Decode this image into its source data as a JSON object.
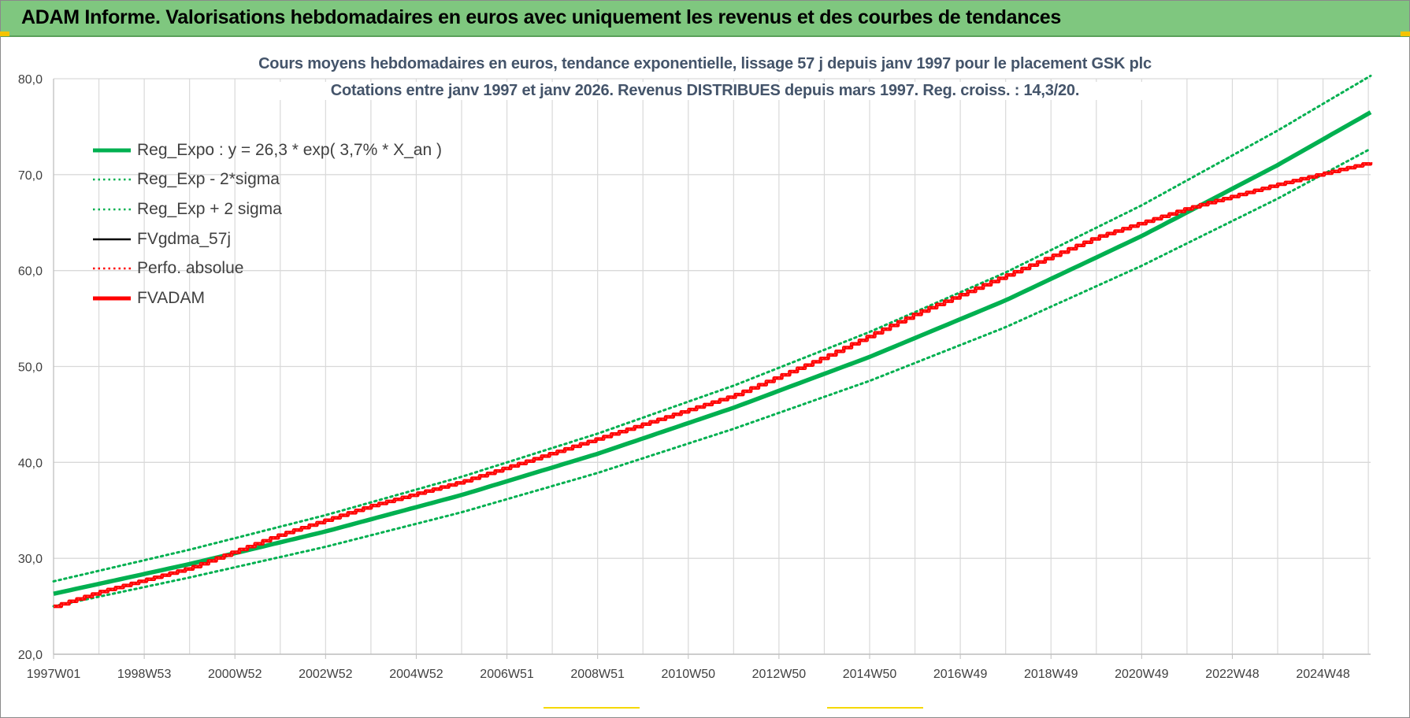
{
  "banner": {
    "title": "ADAM Informe. Valorisations hebdomadaires en euros avec uniquement les revenus et des courbes de tendances"
  },
  "colors": {
    "banner_bg": "#7fc77f",
    "trend_green": "#00b050",
    "red": "#ff0000",
    "black": "#000000",
    "title_color": "#44546a",
    "grid": "#d9d9d9",
    "axis_text": "#404040"
  },
  "chart_data": {
    "type": "line",
    "title_line1": "Cours moyens hebdomadaires en euros, tendance exponentielle, lissage 57 j depuis janv 1997  pour le placement GSK plc",
    "title_line2": "Cotations entre janv 1997 et janv 2026. Revenus DISTRIBUES depuis mars 1997. Reg. croiss. : 14,3/20.",
    "x_tick_labels": [
      "1997W01",
      "1998W53",
      "2000W52",
      "2002W52",
      "2004W52",
      "2006W51",
      "2008W51",
      "2010W50",
      "2012W50",
      "2014W50",
      "2016W49",
      "2018W49",
      "2020W49",
      "2022W48",
      "2024W48"
    ],
    "x_range_years": [
      1997.0,
      2026.05
    ],
    "ylim": [
      20,
      80
    ],
    "y_ticks": [
      "20,0",
      "30,0",
      "40,0",
      "50,0",
      "60,0",
      "70,0",
      "80,0"
    ],
    "grid": true,
    "legend_position": "top-left",
    "series": [
      {
        "name": "Reg_Expo : y = 26,3 * exp( 3,7% *  X_an )",
        "style": "solid-thick",
        "color": "#00b050",
        "x": [
          1997,
          2000,
          2003,
          2006,
          2009,
          2012,
          2015,
          2018,
          2021,
          2024,
          2026.05
        ],
        "y": [
          26.3,
          29.4,
          32.8,
          36.6,
          40.9,
          45.7,
          51.0,
          56.9,
          63.6,
          71.0,
          76.5
        ]
      },
      {
        "name": "Reg_Exp - 2*sigma",
        "style": "dotted",
        "color": "#00b050",
        "x": [
          1997,
          2000,
          2003,
          2006,
          2009,
          2012,
          2015,
          2018,
          2021,
          2024,
          2026.05
        ],
        "y": [
          25.0,
          28.0,
          31.2,
          34.8,
          38.9,
          43.5,
          48.5,
          54.1,
          60.5,
          67.5,
          72.7
        ]
      },
      {
        "name": "Reg_Exp + 2 sigma",
        "style": "dotted",
        "color": "#00b050",
        "x": [
          1997,
          2000,
          2003,
          2006,
          2009,
          2012,
          2015,
          2018,
          2021,
          2024,
          2026.05
        ],
        "y": [
          27.6,
          30.9,
          34.5,
          38.5,
          43.0,
          48.0,
          53.6,
          59.8,
          66.8,
          74.6,
          80.3
        ]
      },
      {
        "name": "FVgdma_57j",
        "style": "solid",
        "color": "#000000",
        "x": [
          1997,
          1998,
          2000,
          2002,
          2004,
          2006,
          2008,
          2010,
          2012,
          2014,
          2016,
          2018,
          2020,
          2022,
          2024,
          2026.05
        ],
        "y": [
          25.0,
          26.5,
          29.0,
          32.5,
          35.5,
          38.0,
          41.0,
          44.0,
          47.0,
          51.0,
          55.5,
          59.5,
          63.5,
          66.5,
          69.0,
          71.3
        ]
      },
      {
        "name": "Perfo. absolue",
        "style": "dotted",
        "color": "#ff0000",
        "x": [
          1997,
          1998,
          2000,
          2002,
          2004,
          2006,
          2008,
          2010,
          2012,
          2014,
          2016,
          2018,
          2020,
          2022,
          2024,
          2026.05
        ],
        "y": [
          25.0,
          26.5,
          29.0,
          32.5,
          35.5,
          38.0,
          41.0,
          44.0,
          47.0,
          51.0,
          55.5,
          59.5,
          63.5,
          66.5,
          69.0,
          71.3
        ]
      },
      {
        "name": "FVADAM",
        "style": "solid-thick",
        "color": "#ff0000",
        "x": [
          1997,
          1998,
          2000,
          2002,
          2004,
          2006,
          2008,
          2010,
          2012,
          2014,
          2016,
          2018,
          2020,
          2022,
          2024,
          2026.05
        ],
        "y": [
          25.0,
          26.5,
          29.0,
          32.5,
          35.5,
          38.0,
          41.0,
          44.0,
          47.0,
          51.0,
          55.5,
          59.5,
          63.5,
          66.5,
          69.0,
          71.3
        ]
      }
    ]
  }
}
